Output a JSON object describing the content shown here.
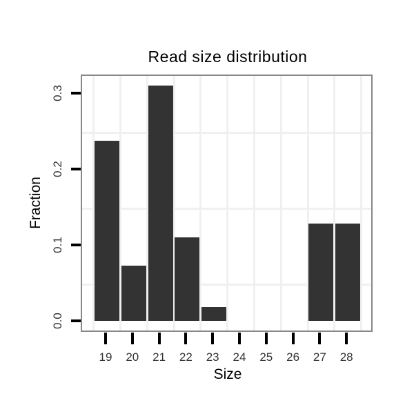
{
  "title": "Read size distribution",
  "chart_data": {
    "type": "bar",
    "title": "Read size distribution",
    "xlabel": "Size",
    "ylabel": "Fraction",
    "categories": [
      "19",
      "20",
      "21",
      "22",
      "23",
      "24",
      "25",
      "26",
      "27",
      "28"
    ],
    "values": [
      0.237,
      0.073,
      0.31,
      0.11,
      0.018,
      0,
      0,
      0,
      0.128,
      0.128
    ],
    "y_tick_labels": [
      "0.0",
      "0.1",
      "0.2",
      "0.3"
    ],
    "y_tick_values": [
      0,
      0.1,
      0.2,
      0.3
    ],
    "ylim": [
      -0.0145,
      0.3245
    ],
    "minor_grid_values": [
      0.05,
      0.15,
      0.25
    ],
    "grid": "on",
    "legend": "none",
    "colors": {
      "bar": "#333333",
      "panel_border": "#888888",
      "gridline": "#f0f0f0",
      "tick_mark": "#000000",
      "tick_label": "#333333",
      "text": "#000000",
      "background": "#ffffff"
    }
  }
}
